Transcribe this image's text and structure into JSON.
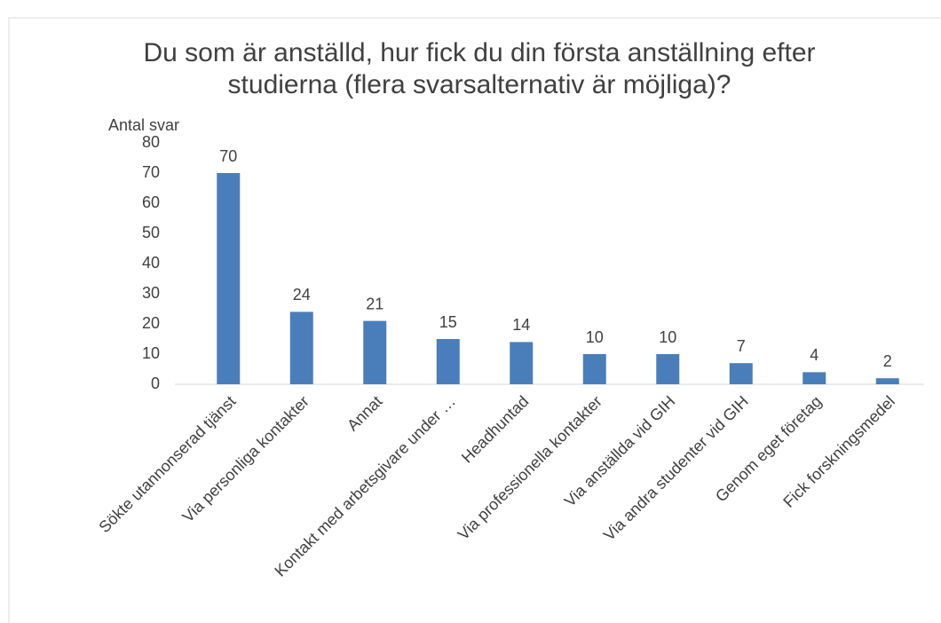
{
  "chart_data": {
    "type": "bar",
    "title": "Du som är anställd, hur fick du din första anställning efter studierna (flera svarsalternativ är möjliga)?",
    "y_label": "Antal svar",
    "categories": [
      "Sökte utannonserad tjänst",
      "Via personliga kontakter",
      "Annat",
      "Kontakt med arbetsgivare under …",
      "Headhuntad",
      "Via professionella kontakter",
      "Via anställda vid GIH",
      "Via andra studenter vid GIH",
      "Genom eget företag",
      "Fick forskningsmedel"
    ],
    "values": [
      70,
      24,
      21,
      15,
      14,
      10,
      10,
      7,
      4,
      2
    ],
    "color": "#4a7ebb",
    "ylim": [
      0,
      80
    ],
    "yticks": [
      0,
      10,
      20,
      30,
      40,
      50,
      60,
      70,
      80
    ],
    "grid": false
  }
}
